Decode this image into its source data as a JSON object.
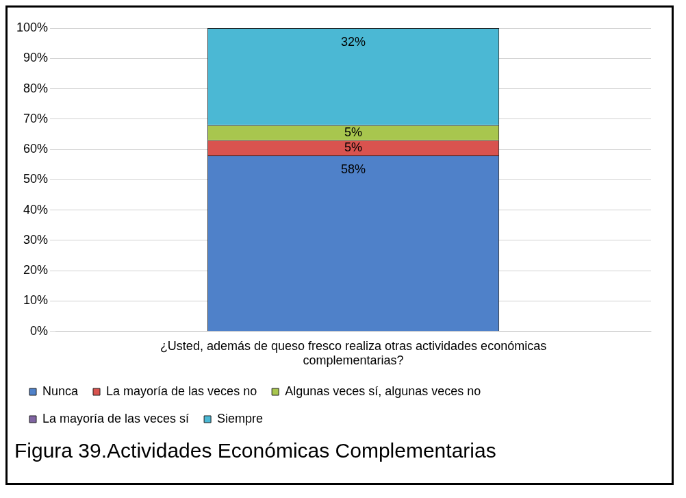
{
  "chart_data": {
    "type": "bar",
    "stacked": true,
    "title": "Figura 39.Actividades Económicas Complementarias",
    "categories": [
      "¿Usted, además de queso fresco realiza otras actividades económicas complementarias?"
    ],
    "series": [
      {
        "name": "Nunca",
        "color": "#4f81c9",
        "values": [
          58
        ],
        "value_labels": [
          "58%"
        ]
      },
      {
        "name": "La mayoría de las veces no",
        "color": "#d9534f",
        "values": [
          5
        ],
        "value_labels": [
          "5%"
        ]
      },
      {
        "name": "Algunas veces sí, algunas veces no",
        "color": "#a8c64e",
        "values": [
          5
        ],
        "value_labels": [
          "5%"
        ]
      },
      {
        "name": "La mayoría de las veces sí",
        "color": "#8064a2",
        "values": [
          0
        ],
        "value_labels": [
          null
        ]
      },
      {
        "name": "Siempre",
        "color": "#4bb8d4",
        "values": [
          32
        ],
        "value_labels": [
          "32%"
        ]
      }
    ],
    "ylim": [
      0,
      100
    ],
    "yticks": [
      {
        "value": 0,
        "label": "0%"
      },
      {
        "value": 10,
        "label": "10%"
      },
      {
        "value": 20,
        "label": "20%"
      },
      {
        "value": 30,
        "label": "30%"
      },
      {
        "value": 40,
        "label": "40%"
      },
      {
        "value": 50,
        "label": "50%"
      },
      {
        "value": 60,
        "label": "60%"
      },
      {
        "value": 70,
        "label": "70%"
      },
      {
        "value": 80,
        "label": "80%"
      },
      {
        "value": 90,
        "label": "90%"
      },
      {
        "value": 100,
        "label": "100%"
      }
    ],
    "grid": "y",
    "legend": "bottom"
  }
}
